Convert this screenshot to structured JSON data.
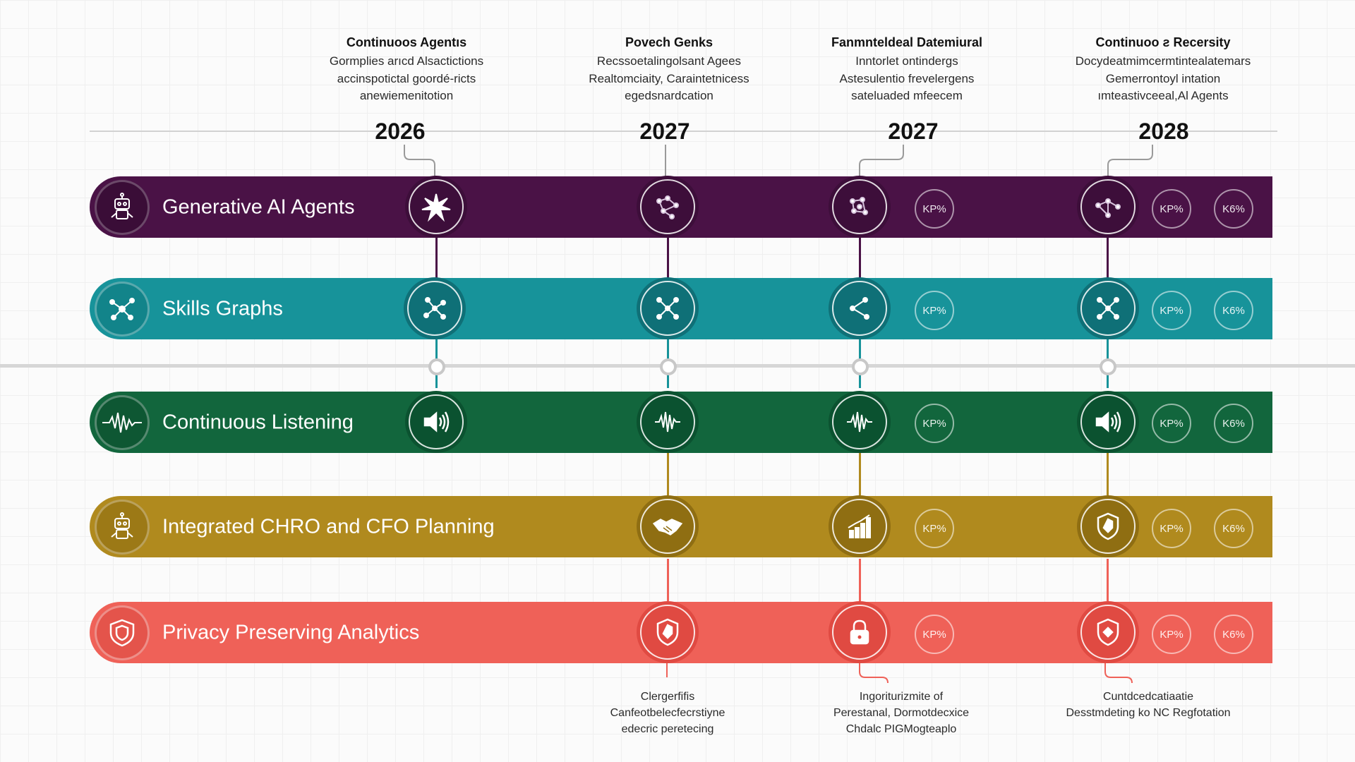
{
  "colors": {
    "generative": "#4a1246",
    "skills": "#17939a",
    "listening": "#12663d",
    "planning": "#b08a1e",
    "privacy": "#ef6158",
    "axis": "#cfcfcf"
  },
  "columns": [
    {
      "title": "Continuoos Agentıs",
      "lines": [
        "Gormplies arıcd Alsactictions",
        "accinspotictal goordé-ricts",
        "anewiemenitotion"
      ],
      "year": "2026"
    },
    {
      "title": "Povech Genks",
      "lines": [
        "Recssoetalingolsant Agees",
        "Realtomciaity, Caraintetnicess",
        "egedsnardcation"
      ],
      "year": "2027"
    },
    {
      "title": "Fanmnteldeal Datemiural",
      "lines": [
        "Inntorlet ontindergs",
        "Astesulentio frevelergens",
        "sateluaded mfeecem"
      ],
      "year": "2027"
    },
    {
      "title": "Continuoo ƨ Recersity",
      "lines": [
        "Docydeatmimcermtintealatemars",
        "Gemerrontoyl intation",
        "ımteastivceeal,Al Agents"
      ],
      "year": "2028"
    }
  ],
  "rows": [
    {
      "label": "Generative AI Agents",
      "icon": "robot-icon",
      "nodes": [
        "starburst-icon",
        "network-icon",
        "network-icon",
        "network-icon"
      ],
      "kpis": [
        [
          "KP%"
        ],
        [
          "KP%",
          "K6%"
        ]
      ]
    },
    {
      "label": "Skills Graphs",
      "icon": "graph-icon",
      "nodes": [
        "graph-icon",
        "graph-icon",
        "graph-icon",
        "graph-icon"
      ],
      "kpis": [
        [
          "KP%"
        ],
        [
          "KP%",
          "K6%"
        ]
      ]
    },
    {
      "label": "Continuous Listening",
      "icon": "waveform-icon",
      "nodes": [
        "speaker-icon",
        "waveform-icon",
        "waveform-icon",
        "speaker-icon"
      ],
      "kpis": [
        [
          "KP%"
        ],
        [
          "KP%",
          "K6%"
        ]
      ]
    },
    {
      "label": "Integrated CHRO and CFO Planning",
      "icon": "robot-icon",
      "nodes": [
        "handshake-icon",
        "bar-chart-icon",
        "shield-icon"
      ],
      "kpis": [
        [
          "KP%"
        ],
        [
          "KP%",
          "K6%"
        ]
      ]
    },
    {
      "label": "Privacy Preserving Analytics",
      "icon": "shield-icon",
      "nodes": [
        "shield-icon",
        "lock-icon",
        "shield-icon"
      ],
      "kpis": [
        [
          "KP%"
        ],
        [
          "KP%",
          "K6%"
        ]
      ]
    }
  ],
  "bottom_notes": [
    {
      "lines": [
        "Clergerfifis",
        "Canfeotbelecfecrstiyne",
        "edecric peretecing"
      ]
    },
    {
      "lines": [
        "Ingoriturizmite of",
        "Perestanal, Dormotdecxice",
        "Chdalc PIGMogteaplo"
      ]
    },
    {
      "lines": [
        "Cuntdcedcatiaatie",
        "Desstmdeting ko NC Regfotation"
      ]
    }
  ]
}
